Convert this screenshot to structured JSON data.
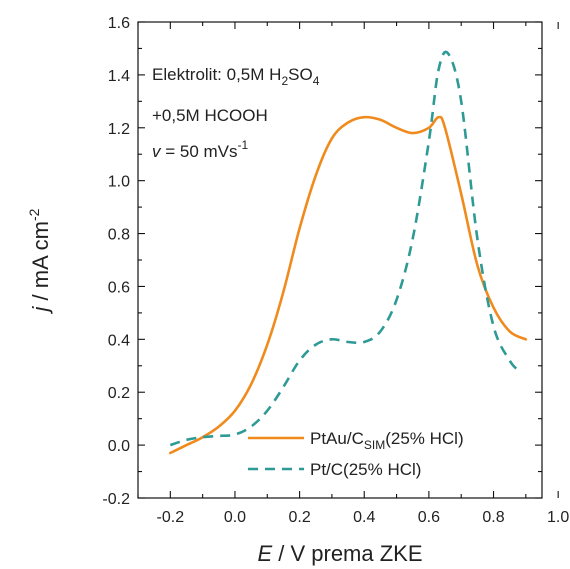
{
  "chart_data": {
    "type": "line",
    "xlabel": {
      "italic": "E",
      "rest": " / V prema ZKE"
    },
    "ylabel": {
      "italic": "j",
      "rest": " / mA cm",
      "sup": "-2"
    },
    "xlim": [
      -0.3,
      0.95
    ],
    "ylim": [
      -0.2,
      1.6
    ],
    "xticks": [
      -0.2,
      0.0,
      0.2,
      0.4,
      0.6,
      0.8,
      1.0
    ],
    "xtick_labels": [
      "-0.2",
      "0.0",
      "0.2",
      "0.4",
      "0.6",
      "0.8",
      "1.0"
    ],
    "yticks": [
      -0.2,
      0.0,
      0.2,
      0.4,
      0.6,
      0.8,
      1.0,
      1.2,
      1.4,
      1.6
    ],
    "ytick_labels": [
      "-0.2",
      "0.0",
      "0.2",
      "0.4",
      "0.6",
      "0.8",
      "1.0",
      "1.2",
      "1.4",
      "1.6"
    ],
    "grid": false,
    "legend_position": "bottom-right",
    "annotations": {
      "line1_main": "Elektrolit: 0,5M H",
      "line1_sub1": "2",
      "line1_mid": "SO",
      "line1_sub2": "4",
      "line2": "+0,5M HCOOH",
      "line3_italic": "v",
      "line3_main": " = 50 mVs",
      "line3_sup": "-1"
    },
    "series": [
      {
        "name": "PtAu/C",
        "name_sub": "SIM",
        "name_suffix": "(25% HCl)",
        "style": "solid",
        "color": "#F08A1C",
        "x": [
          -0.2,
          -0.15,
          -0.1,
          -0.05,
          0.0,
          0.05,
          0.1,
          0.15,
          0.2,
          0.25,
          0.3,
          0.35,
          0.4,
          0.45,
          0.5,
          0.55,
          0.6,
          0.63,
          0.65,
          0.7,
          0.75,
          0.8,
          0.85,
          0.9
        ],
        "y": [
          -0.03,
          0.0,
          0.03,
          0.07,
          0.13,
          0.23,
          0.38,
          0.58,
          0.82,
          1.02,
          1.16,
          1.22,
          1.24,
          1.23,
          1.2,
          1.18,
          1.2,
          1.24,
          1.2,
          0.95,
          0.68,
          0.52,
          0.43,
          0.4
        ]
      },
      {
        "name": "Pt/C(25% HCl)",
        "style": "dashed",
        "color": "#2E9A96",
        "x": [
          -0.2,
          -0.15,
          -0.1,
          -0.05,
          0.0,
          0.05,
          0.1,
          0.15,
          0.2,
          0.25,
          0.3,
          0.35,
          0.4,
          0.45,
          0.5,
          0.55,
          0.6,
          0.63,
          0.66,
          0.7,
          0.75,
          0.8,
          0.85,
          0.88
        ],
        "y": [
          0.0,
          0.02,
          0.03,
          0.035,
          0.04,
          0.07,
          0.13,
          0.22,
          0.32,
          0.38,
          0.4,
          0.39,
          0.39,
          0.43,
          0.55,
          0.78,
          1.15,
          1.42,
          1.48,
          1.3,
          0.78,
          0.45,
          0.32,
          0.28
        ]
      }
    ]
  }
}
